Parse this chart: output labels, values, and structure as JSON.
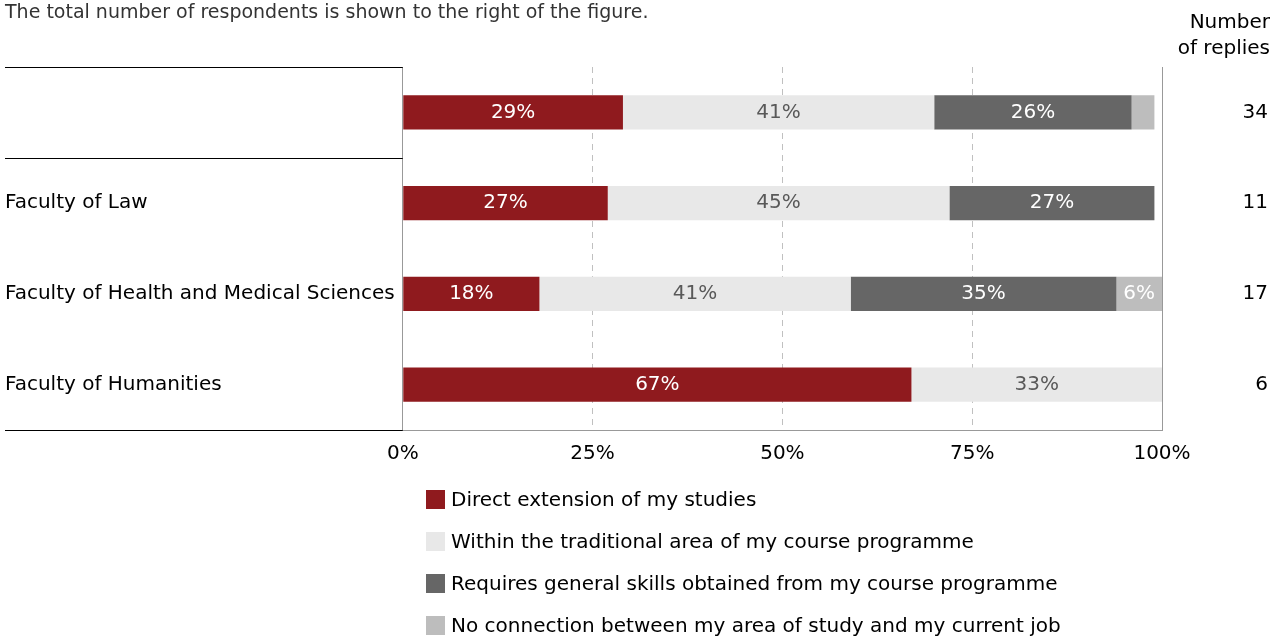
{
  "chart_data": {
    "type": "bar",
    "orientation": "horizontal",
    "stacked": true,
    "subtitle": "The total number of respondents is shown to the right of the figure.",
    "annotations": [
      "Number\nof replies",
      "34",
      "11",
      "17",
      "6"
    ],
    "categories": [
      null,
      "Faculty of Law",
      "Faculty of Health and Medical Sciences",
      "Faculty of Humanities"
    ],
    "series": [
      {
        "name": "Direct extension of my studies",
        "color": "#8f1a1e",
        "values": [
          29,
          27,
          18,
          67
        ],
        "value_labels": [
          "29%",
          "27%",
          "18%",
          "67%"
        ]
      },
      {
        "name": "Within the traditional area of my course programme",
        "color": "#e8e8e8",
        "values": [
          41,
          45,
          41,
          33
        ],
        "value_labels": [
          "41%",
          "45%",
          "41%",
          "33%"
        ]
      },
      {
        "name": "Requires general skills obtained from my course programme",
        "color": "#666666",
        "values": [
          26,
          27,
          35,
          null
        ],
        "value_labels": [
          "26%",
          "27%",
          "35%",
          null
        ]
      },
      {
        "name": "No connection between my area of study and my current job",
        "color": "#bdbdbd",
        "values": [
          3,
          null,
          6,
          null
        ],
        "value_labels": [
          null,
          null,
          "6%",
          null
        ]
      }
    ],
    "xlim": [
      0,
      100
    ],
    "xticks": [
      {
        "value": 0,
        "label": "0%"
      },
      {
        "value": 25,
        "label": "25%"
      },
      {
        "value": 50,
        "label": "50%"
      },
      {
        "value": 75,
        "label": "75%"
      },
      {
        "value": 100,
        "label": "100%"
      }
    ],
    "grid": "x",
    "legend": "bottom"
  }
}
